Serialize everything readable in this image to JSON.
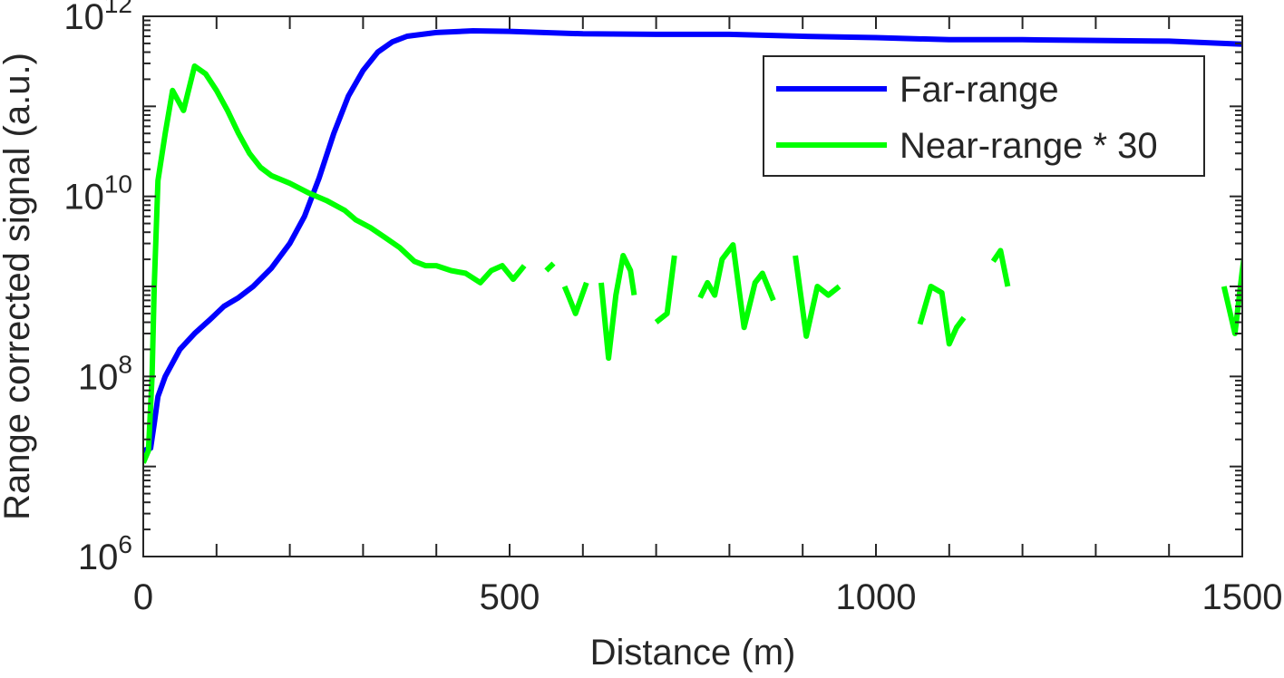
{
  "chart_data": {
    "type": "line",
    "title": "",
    "xlabel": "Distance (m)",
    "ylabel": "Range corrected signal (a.u.)",
    "xlim": [
      0,
      1500
    ],
    "ylim": [
      1000000,
      1000000000000
    ],
    "yscale": "log",
    "grid": false,
    "legend_position": "top-right",
    "x_ticks": [
      {
        "value": 0,
        "label": "0"
      },
      {
        "value": 500,
        "label": "500"
      },
      {
        "value": 1000,
        "label": "1000"
      },
      {
        "value": 1500,
        "label": "1500"
      }
    ],
    "y_ticks": [
      {
        "value": 1000000,
        "base": "10",
        "exp": "6"
      },
      {
        "value": 100000000,
        "base": "10",
        "exp": "8"
      },
      {
        "value": 10000000000,
        "base": "10",
        "exp": "10"
      },
      {
        "value": 1000000000000,
        "base": "10",
        "exp": "12"
      }
    ],
    "series": [
      {
        "name": "Far-range",
        "color": "#0000ff",
        "points": [
          [
            0,
            15000000.0
          ],
          [
            10,
            16000000.0
          ],
          [
            15,
            30000000.0
          ],
          [
            20,
            60000000.0
          ],
          [
            30,
            100000000.0
          ],
          [
            50,
            200000000.0
          ],
          [
            70,
            300000000.0
          ],
          [
            90,
            420000000.0
          ],
          [
            110,
            600000000.0
          ],
          [
            130,
            750000000.0
          ],
          [
            150,
            1000000000.0
          ],
          [
            175,
            1600000000.0
          ],
          [
            200,
            3000000000.0
          ],
          [
            220,
            6000000000.0
          ],
          [
            240,
            16000000000.0
          ],
          [
            260,
            50000000000.0
          ],
          [
            280,
            130000000000.0
          ],
          [
            300,
            250000000000.0
          ],
          [
            320,
            400000000000.0
          ],
          [
            340,
            520000000000.0
          ],
          [
            360,
            600000000000.0
          ],
          [
            400,
            660000000000.0
          ],
          [
            450,
            690000000000.0
          ],
          [
            500,
            680000000000.0
          ],
          [
            600,
            640000000000.0
          ],
          [
            700,
            630000000000.0
          ],
          [
            800,
            630000000000.0
          ],
          [
            900,
            600000000000.0
          ],
          [
            1000,
            580000000000.0
          ],
          [
            1100,
            550000000000.0
          ],
          [
            1200,
            550000000000.0
          ],
          [
            1300,
            540000000000.0
          ],
          [
            1400,
            530000000000.0
          ],
          [
            1500,
            490000000000.0
          ]
        ]
      },
      {
        "name": "Near-range * 30",
        "color": "#00ff00",
        "segments": [
          [
            [
              0,
              11000000.0
            ],
            [
              7,
              15000000.0
            ],
            [
              12,
              100000000.0
            ],
            [
              15,
              1000000000.0
            ],
            [
              20,
              15000000000.0
            ],
            [
              30,
              50000000000.0
            ],
            [
              40,
              150000000000.0
            ],
            [
              55,
              90000000000.0
            ],
            [
              70,
              280000000000.0
            ],
            [
              85,
              230000000000.0
            ],
            [
              100,
              150000000000.0
            ],
            [
              115,
              90000000000.0
            ],
            [
              130,
              50000000000.0
            ],
            [
              145,
              30000000000.0
            ],
            [
              160,
              21000000000.0
            ],
            [
              175,
              17000000000.0
            ],
            [
              200,
              14000000000.0
            ],
            [
              225,
              11000000000.0
            ],
            [
              250,
              9000000000.0
            ],
            [
              275,
              7000000000.0
            ],
            [
              290,
              5500000000.0
            ],
            [
              310,
              4500000000.0
            ],
            [
              330,
              3500000000.0
            ],
            [
              350,
              2700000000.0
            ],
            [
              370,
              1900000000.0
            ],
            [
              385,
              1700000000.0
            ],
            [
              400,
              1700000000.0
            ],
            [
              420,
              1500000000.0
            ],
            [
              440,
              1400000000.0
            ],
            [
              460,
              1100000000.0
            ],
            [
              475,
              1500000000.0
            ],
            [
              490,
              1700000000.0
            ],
            [
              505,
              1200000000.0
            ],
            [
              520,
              1700000000.0
            ]
          ],
          [
            [
              550,
              1500000000.0
            ],
            [
              560,
              1800000000.0
            ]
          ],
          [
            [
              575,
              1000000000.0
            ],
            [
              580,
              800000000.0
            ],
            [
              590,
              500000000.0
            ],
            [
              605,
              1100000000.0
            ]
          ],
          [
            [
              625,
              1100000000.0
            ],
            [
              635,
              160000000.0
            ],
            [
              645,
              800000000.0
            ],
            [
              655,
              2200000000.0
            ],
            [
              665,
              1500000000.0
            ],
            [
              670,
              800000000.0
            ]
          ],
          [
            [
              700,
              400000000.0
            ],
            [
              715,
              500000000.0
            ],
            [
              725,
              2200000000.0
            ]
          ],
          [
            [
              760,
              750000000.0
            ],
            [
              770,
              1100000000.0
            ],
            [
              780,
              800000000.0
            ],
            [
              790,
              2000000000.0
            ],
            [
              805,
              2900000000.0
            ],
            [
              820,
              350000000.0
            ],
            [
              835,
              1100000000.0
            ],
            [
              845,
              1400000000.0
            ],
            [
              860,
              700000000.0
            ]
          ],
          [
            [
              890,
              2200000000.0
            ],
            [
              905,
              280000000.0
            ],
            [
              920,
              1000000000.0
            ],
            [
              935,
              800000000.0
            ],
            [
              950,
              1000000000.0
            ]
          ],
          [
            [
              1060,
              380000000.0
            ],
            [
              1075,
              1000000000.0
            ],
            [
              1090,
              850000000.0
            ],
            [
              1100,
              230000000.0
            ],
            [
              1110,
              350000000.0
            ],
            [
              1120,
              450000000.0
            ]
          ],
          [
            [
              1160,
              1900000000.0
            ],
            [
              1170,
              2500000000.0
            ],
            [
              1180,
              1000000000.0
            ]
          ],
          [
            [
              1475,
              1000000000.0
            ],
            [
              1490,
              300000000.0
            ],
            [
              1500,
              1500000000.0
            ],
            [
              1505,
              3000000000.0
            ],
            [
              1515,
              1200000000.0
            ]
          ]
        ]
      }
    ]
  }
}
